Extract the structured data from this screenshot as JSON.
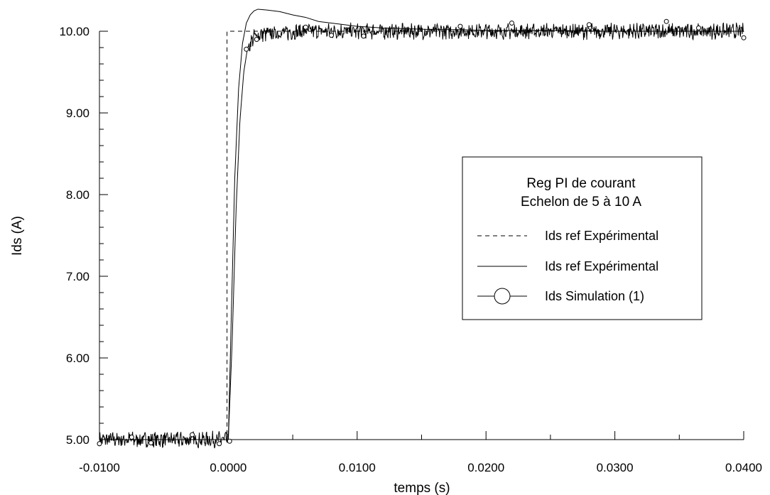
{
  "chart_data": {
    "type": "line",
    "xlabel": "temps (s)",
    "ylabel": "Ids (A)",
    "xlim": [
      -0.01,
      0.04
    ],
    "ylim": [
      5.0,
      10.0
    ],
    "x_ticks": [
      -0.01,
      0.0,
      0.01,
      0.02,
      0.03,
      0.04
    ],
    "x_tick_labels": [
      "-0.0100",
      "0.0000",
      "0.0100",
      "0.0200",
      "0.0300",
      "0.0400"
    ],
    "y_ticks": [
      5.0,
      6.0,
      7.0,
      8.0,
      9.0,
      10.0
    ],
    "y_tick_labels": [
      "5.00",
      "6.00",
      "7.00",
      "8.00",
      "9.00",
      "10.00"
    ],
    "grid": false,
    "legend": {
      "position": "right",
      "title_lines": [
        "Reg PI de courant",
        "Echelon de 5 à 10 A"
      ],
      "entries": [
        {
          "label": "Ids ref Expérimental",
          "style": "dashed"
        },
        {
          "label": "Ids ref Expérimental",
          "style": "solid"
        },
        {
          "label": "Ids Simulation (1)",
          "style": "circle-marker"
        }
      ]
    },
    "series": [
      {
        "style": "dashed",
        "x": [
          -0.01,
          -0.0001,
          -0.0001,
          0.04
        ],
        "y": [
          5.0,
          5.0,
          10.0,
          10.0
        ]
      },
      {
        "style": "solid",
        "x": [
          -0.01,
          0.0,
          0.0002,
          0.0005,
          0.0008,
          0.0011,
          0.0014,
          0.0017,
          0.002,
          0.0023,
          0.003,
          0.004,
          0.005,
          0.006,
          0.007,
          0.008,
          0.009,
          0.01,
          0.011,
          0.012,
          0.014,
          0.016,
          0.018,
          0.02,
          0.025,
          0.03,
          0.035,
          0.04
        ],
        "y": [
          5.0,
          5.0,
          6.3,
          8.2,
          9.3,
          9.85,
          10.1,
          10.2,
          10.25,
          10.27,
          10.26,
          10.24,
          10.2,
          10.17,
          10.12,
          10.1,
          10.08,
          10.06,
          10.05,
          10.04,
          10.03,
          10.02,
          10.02,
          10.01,
          10.01,
          10.0,
          10.0,
          10.0
        ]
      },
      {
        "style": "noisy-circle",
        "x": [
          -0.01,
          -0.008,
          -0.006,
          -0.004,
          -0.002,
          -0.0002,
          0.0,
          0.0003,
          0.0006,
          0.0009,
          0.0012,
          0.0015,
          0.002,
          0.0025,
          0.003,
          0.004,
          0.005,
          0.006,
          0.008,
          0.01,
          0.015,
          0.02,
          0.025,
          0.03,
          0.035,
          0.04
        ],
        "y": [
          5.0,
          5.0,
          5.0,
          5.0,
          5.0,
          5.0,
          5.0,
          6.2,
          7.8,
          8.9,
          9.5,
          9.8,
          9.93,
          9.96,
          9.97,
          9.98,
          9.99,
          10.0,
          10.0,
          10.0,
          10.0,
          10.0,
          10.0,
          10.0,
          10.0,
          10.0
        ],
        "noise_amplitude": 0.08,
        "markers": [
          {
            "x": -0.01,
            "y": 4.95
          },
          {
            "x": -0.0075,
            "y": 5.03
          },
          {
            "x": -0.006,
            "y": 4.96
          },
          {
            "x": -0.0028,
            "y": 5.06
          },
          {
            "x": -0.0007,
            "y": 4.95
          },
          {
            "x": 0.0001,
            "y": 4.98
          },
          {
            "x": 0.0014,
            "y": 9.78
          },
          {
            "x": 0.0022,
            "y": 9.9
          },
          {
            "x": 0.006,
            "y": 10.05
          },
          {
            "x": 0.008,
            "y": 9.95
          },
          {
            "x": 0.0105,
            "y": 9.94
          },
          {
            "x": 0.018,
            "y": 10.06
          },
          {
            "x": 0.022,
            "y": 10.1
          },
          {
            "x": 0.028,
            "y": 10.08
          },
          {
            "x": 0.034,
            "y": 10.12
          },
          {
            "x": 0.0365,
            "y": 10.04
          },
          {
            "x": 0.04,
            "y": 9.92
          }
        ]
      }
    ]
  }
}
